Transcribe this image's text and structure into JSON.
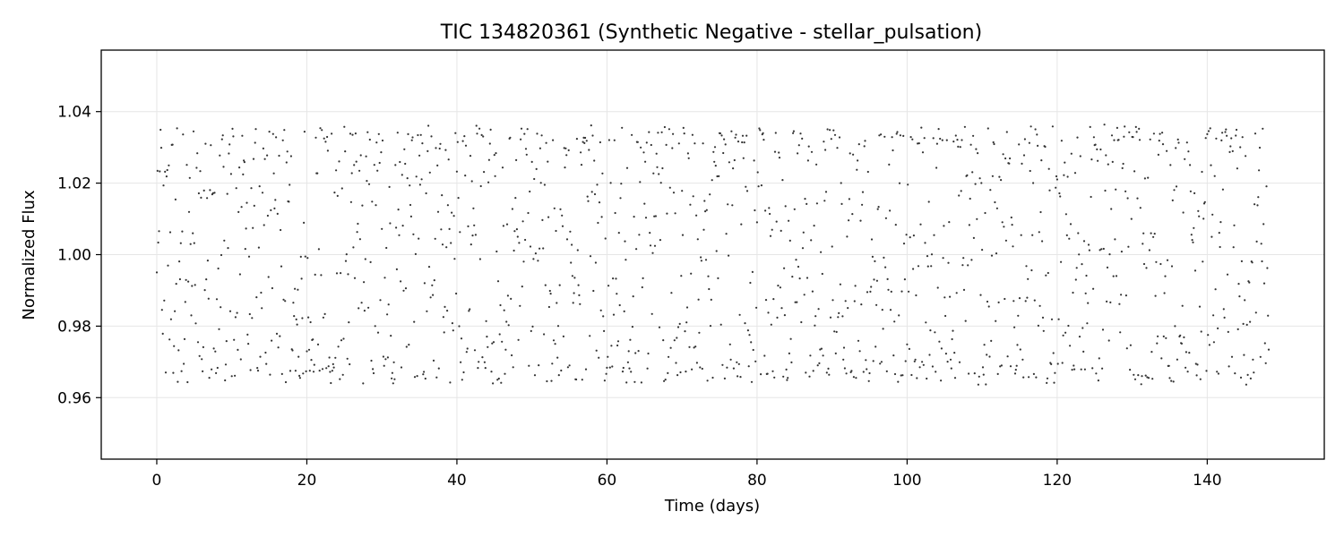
{
  "chart_data": {
    "type": "scatter",
    "title": "TIC 134820361 (Synthetic Negative - stellar_pulsation)",
    "xlabel": "Time (days)",
    "ylabel": "Normalized Flux",
    "xlim": [
      -7.4,
      155.6
    ],
    "ylim": [
      0.9428,
      1.0572
    ],
    "xticks": [
      0,
      20,
      40,
      60,
      80,
      100,
      120,
      140
    ],
    "yticks": [
      0.96,
      0.98,
      1.0,
      1.02,
      1.04
    ],
    "xtick_labels": [
      "0",
      "20",
      "40",
      "60",
      "80",
      "100",
      "120",
      "140"
    ],
    "ytick_labels": [
      "0.96",
      "0.98",
      "1.00",
      "1.02",
      "1.04"
    ],
    "grid": true,
    "marker_color": "#333333",
    "series": [
      {
        "x_start": 0.0,
        "x_end": 148.2,
        "x_step": 0.1,
        "y_center": 1.0,
        "y_min": 0.963,
        "y_max": 1.037,
        "note_values": "dense scatter of roughly 1480 points uniformly spread in time with flux filling 0.963-1.037"
      }
    ]
  }
}
